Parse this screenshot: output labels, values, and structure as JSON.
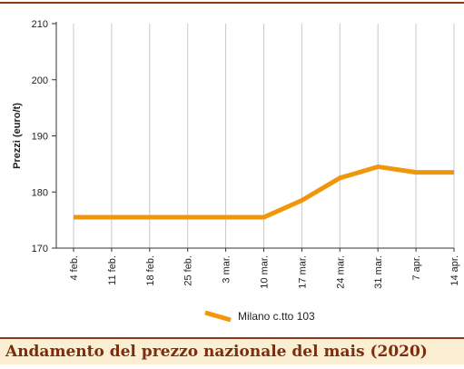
{
  "chart_data": {
    "type": "line",
    "ylabel": "Prezzi (euro/t)",
    "xlabel": "",
    "categories": [
      "4 feb.",
      "11 feb.",
      "18 feb.",
      "25 feb.",
      "3 mar.",
      "10 mar.",
      "17 mar.",
      "24 mar.",
      "31 mar.",
      "7 apr.",
      "14 apr."
    ],
    "series": [
      {
        "name": "Milano  c.tto 103",
        "values": [
          175.5,
          175.5,
          175.5,
          175.5,
          175.5,
          175.5,
          178.5,
          182.5,
          184.5,
          183.5,
          183.5
        ]
      }
    ],
    "ylim": [
      170,
      210
    ],
    "yticks": [
      170,
      180,
      190,
      200,
      210
    ],
    "grid": {
      "vertical": true,
      "horizontal": false
    },
    "legend": "bottom-center",
    "colors": {
      "series": "#f0960a",
      "grid": "#c8c8c8",
      "axis": "#333333",
      "rule": "#8a3a14",
      "caption_bg": "#fbeed2",
      "caption_text": "#7b2e0e"
    }
  },
  "caption": "Andamento del prezzo nazionale del mais (2020)"
}
